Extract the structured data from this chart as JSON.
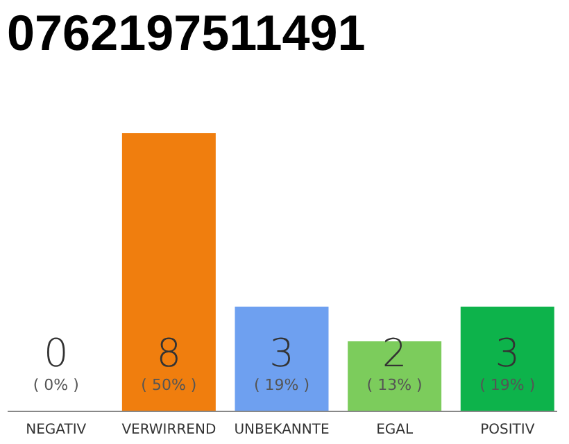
{
  "chart_data": {
    "type": "bar",
    "title": "0762197511491",
    "categories": [
      "NEGATIV",
      "VERWIRREND",
      "UNBEKANNTE",
      "EGAL",
      "POSITIV"
    ],
    "values": [
      0,
      8,
      3,
      2,
      3
    ],
    "colors": [
      "#9e9e9e",
      "#f07e0e",
      "#6ea0f0",
      "#7ccc5c",
      "#0db34b"
    ],
    "ylim": [
      0,
      8
    ],
    "tick_labels": "x",
    "data_labels": true,
    "annotations": [
      "( 0% )",
      "( 50% )",
      "( 19% )",
      "( 13% )",
      "( 19% )"
    ]
  }
}
